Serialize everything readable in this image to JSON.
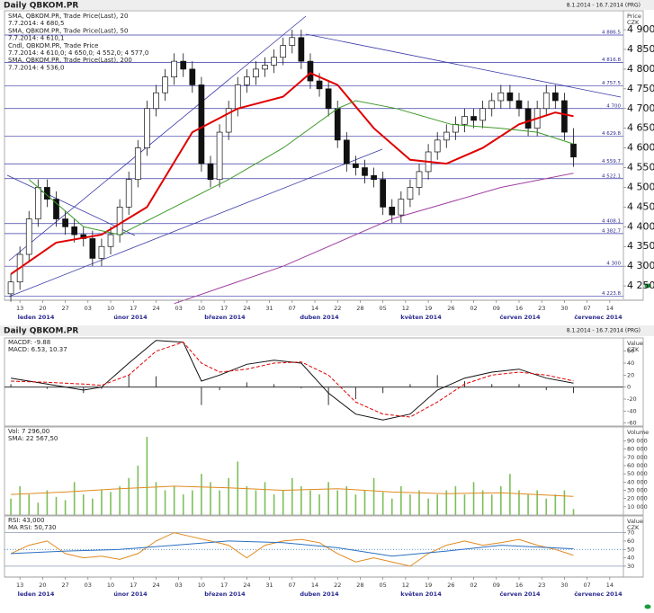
{
  "header": {
    "title": "Daily QBKOM.PR",
    "range": "8.1.2014 - 16.7.2014 (PRG)"
  },
  "chart_data": [
    {
      "type": "candlestick",
      "ylabel": "Price",
      "yunit": "CZK",
      "xlim": [
        -1.4,
        135
      ],
      "xticks": [
        {
          "value": 2,
          "label": "13"
        },
        {
          "value": 7,
          "label": "20"
        },
        {
          "value": 12,
          "label": "27"
        },
        {
          "value": 17,
          "label": "03"
        },
        {
          "value": 22,
          "label": "10"
        },
        {
          "value": 27,
          "label": "17"
        },
        {
          "value": 32,
          "label": "24"
        },
        {
          "value": 37,
          "label": "03"
        },
        {
          "value": 42,
          "label": "10"
        },
        {
          "value": 47,
          "label": "17"
        },
        {
          "value": 52,
          "label": "24"
        },
        {
          "value": 57,
          "label": "31"
        },
        {
          "value": 62,
          "label": "07"
        },
        {
          "value": 67,
          "label": "14"
        },
        {
          "value": 72,
          "label": "22"
        },
        {
          "value": 77,
          "label": "28"
        },
        {
          "value": 82,
          "label": "05"
        },
        {
          "value": 87,
          "label": "12"
        },
        {
          "value": 92,
          "label": "19"
        },
        {
          "value": 97,
          "label": "26"
        },
        {
          "value": 102,
          "label": "02"
        },
        {
          "value": 107,
          "label": "09"
        },
        {
          "value": 112,
          "label": "16"
        },
        {
          "value": 117,
          "label": "23"
        },
        {
          "value": 122,
          "label": "30"
        },
        {
          "value": 127,
          "label": "07"
        },
        {
          "value": 132,
          "label": "14"
        }
      ],
      "months": [
        "leden 2014",
        "únor 2014",
        "březen 2014",
        "duben 2014",
        "květen 2014",
        "červen 2014",
        "červenec 2014"
      ],
      "ylim": [
        4216,
        4948
      ],
      "yticks": [
        {
          "value": 4250,
          "label": "4 250"
        },
        {
          "value": 4300,
          "label": "4 300"
        },
        {
          "value": 4350,
          "label": "4 350"
        },
        {
          "value": 4400,
          "label": "4 400"
        },
        {
          "value": 4450,
          "label": "4 450"
        },
        {
          "value": 4500,
          "label": "4 500"
        },
        {
          "value": 4550,
          "label": "4 550"
        },
        {
          "value": 4600,
          "label": "4 600"
        },
        {
          "value": 4650,
          "label": "4 650"
        },
        {
          "value": 4700,
          "label": "4 700"
        },
        {
          "value": 4750,
          "label": "4 750"
        },
        {
          "value": 4800,
          "label": "4 800"
        },
        {
          "value": 4850,
          "label": "4 850"
        },
        {
          "value": 4900,
          "label": "4 900"
        }
      ],
      "levels": [
        {
          "value": 4886.5,
          "label": "4 886.5"
        },
        {
          "value": 4816.8,
          "label": "4 816.8"
        },
        {
          "value": 4757.5,
          "label": "4 757.5"
        },
        {
          "value": 4700,
          "label": "4 700"
        },
        {
          "value": 4629.8,
          "label": "4 629.8"
        },
        {
          "value": 4559.7,
          "label": "4 559.7"
        },
        {
          "value": 4522.1,
          "label": "4 522.1"
        },
        {
          "value": 4408.1,
          "label": "4 408.1"
        },
        {
          "value": 4382.7,
          "label": "4 382.7"
        },
        {
          "value": 4300,
          "label": "4 300"
        },
        {
          "value": 4223.8,
          "label": "4 223.8"
        }
      ],
      "level_color": "#3a3aa8",
      "legend": [
        {
          "text": "SMA, QBKOM.PR, Trade Price(Last), 20",
          "color": "#e00000"
        },
        {
          "text": "7.7.2014: 4 680,5",
          "color": "#e00000"
        },
        {
          "text": "SMA, QBKOM.PR, Trade Price(Last), 50",
          "color": "#3f9a2a"
        },
        {
          "text": "7.7.2014: 4 610,1",
          "color": "#3f9a2a"
        },
        {
          "text": "Cndl, QBKOM.PR, Trade Price",
          "color": "#111111"
        },
        {
          "text": "7.7.2014: 4 610,0; 4 650,0; 4 552,0; 4 577,0",
          "color": "#111111"
        },
        {
          "text": "SMA, QBKOM.PR, Trade Price(Last), 200",
          "color": "#a040a0"
        },
        {
          "text": "7.7.2014: 4 536,0",
          "color": "#a040a0"
        }
      ],
      "candles": {
        "x": [
          0,
          2,
          4,
          6,
          8,
          10,
          12,
          14,
          16,
          18,
          20,
          22,
          24,
          26,
          28,
          30,
          32,
          34,
          36,
          38,
          40,
          42,
          44,
          46,
          48,
          50,
          52,
          54,
          56,
          58,
          60,
          62,
          64,
          66,
          68,
          70,
          72,
          74,
          76,
          78,
          80,
          82,
          84,
          86,
          88,
          90,
          92,
          94,
          96,
          98,
          100,
          102,
          104,
          106,
          108,
          110,
          112,
          114,
          116,
          118,
          120,
          122,
          124
        ],
        "open": [
          4230,
          4260,
          4330,
          4420,
          4500,
          4470,
          4420,
          4400,
          4380,
          4370,
          4320,
          4350,
          4380,
          4450,
          4520,
          4600,
          4700,
          4740,
          4780,
          4820,
          4800,
          4760,
          4560,
          4520,
          4640,
          4700,
          4760,
          4780,
          4800,
          4810,
          4830,
          4860,
          4880,
          4820,
          4770,
          4750,
          4700,
          4620,
          4560,
          4550,
          4530,
          4520,
          4450,
          4430,
          4470,
          4500,
          4540,
          4590,
          4620,
          4640,
          4660,
          4680,
          4670,
          4700,
          4720,
          4740,
          4720,
          4700,
          4650,
          4700,
          4740,
          4720,
          4610
        ],
        "high": [
          4280,
          4350,
          4440,
          4520,
          4520,
          4490,
          4440,
          4420,
          4400,
          4390,
          4370,
          4400,
          4470,
          4540,
          4620,
          4720,
          4760,
          4800,
          4840,
          4840,
          4820,
          4780,
          4580,
          4660,
          4720,
          4780,
          4800,
          4820,
          4830,
          4850,
          4880,
          4900,
          4900,
          4840,
          4790,
          4770,
          4720,
          4640,
          4580,
          4570,
          4550,
          4540,
          4470,
          4490,
          4520,
          4560,
          4610,
          4640,
          4660,
          4680,
          4700,
          4700,
          4720,
          4740,
          4760,
          4760,
          4740,
          4720,
          4720,
          4760,
          4760,
          4740,
          4650
        ],
        "low": [
          4210,
          4240,
          4310,
          4400,
          4450,
          4400,
          4380,
          4360,
          4350,
          4300,
          4300,
          4330,
          4360,
          4430,
          4500,
          4580,
          4680,
          4720,
          4760,
          4780,
          4740,
          4540,
          4500,
          4500,
          4620,
          4680,
          4740,
          4760,
          4780,
          4790,
          4810,
          4840,
          4800,
          4750,
          4730,
          4680,
          4600,
          4540,
          4530,
          4510,
          4500,
          4430,
          4410,
          4410,
          4450,
          4480,
          4520,
          4570,
          4600,
          4620,
          4640,
          4650,
          4650,
          4680,
          4700,
          4700,
          4680,
          4630,
          4630,
          4680,
          4700,
          4620,
          4552
        ],
        "close": [
          4260,
          4330,
          4420,
          4500,
          4470,
          4420,
          4400,
          4380,
          4370,
          4320,
          4350,
          4380,
          4450,
          4520,
          4600,
          4700,
          4740,
          4780,
          4820,
          4800,
          4760,
          4560,
          4520,
          4640,
          4700,
          4760,
          4780,
          4800,
          4810,
          4830,
          4860,
          4880,
          4820,
          4770,
          4750,
          4700,
          4620,
          4560,
          4550,
          4530,
          4520,
          4450,
          4430,
          4470,
          4500,
          4540,
          4590,
          4620,
          4640,
          4660,
          4680,
          4670,
          4700,
          4720,
          4740,
          4720,
          4700,
          4650,
          4700,
          4740,
          4720,
          4640,
          4577
        ]
      },
      "series": [
        {
          "color": "#e00000",
          "width": 2,
          "x": [
            0,
            10,
            20,
            30,
            40,
            50,
            60,
            66,
            72,
            80,
            88,
            96,
            104,
            112,
            120,
            124
          ],
          "values": [
            4280,
            4360,
            4380,
            4450,
            4640,
            4700,
            4730,
            4790,
            4760,
            4650,
            4570,
            4560,
            4600,
            4660,
            4690,
            4680.5
          ]
        },
        {
          "color": "#3f9a2a",
          "width": 1,
          "x": [
            4,
            16,
            24,
            48,
            60,
            72,
            76,
            85,
            97,
            108,
            116,
            124
          ],
          "values": [
            4520,
            4400,
            4380,
            4520,
            4600,
            4700,
            4720,
            4700,
            4660,
            4650,
            4640,
            4610.1
          ]
        },
        {
          "color": "#a040a0",
          "width": 1,
          "x": [
            36,
            60,
            84,
            108,
            124
          ],
          "values": [
            4205,
            4300,
            4420,
            4500,
            4536
          ]
        }
      ]
    },
    {
      "type": "macd",
      "ylabel": "Value",
      "yunit": "CZK",
      "ylim": [
        -65,
        82
      ],
      "yticks": [
        60,
        40,
        20,
        0,
        -20,
        -40,
        -60
      ],
      "legend": [
        {
          "text": "MACDF: -9.88",
          "color": "#111111"
        },
        {
          "text": "MACD: 6.53, 10.37",
          "color": "#111111"
        }
      ],
      "x": [
        0,
        8,
        16,
        20,
        26,
        32,
        38,
        42,
        46,
        52,
        58,
        64,
        70,
        76,
        82,
        88,
        94,
        100,
        106,
        112,
        118,
        124
      ],
      "histogram": [
        5,
        -3,
        -10,
        -3,
        20,
        18,
        0,
        -30,
        -5,
        8,
        5,
        -2,
        -30,
        -20,
        -10,
        5,
        20,
        10,
        5,
        5,
        -5,
        -9.88
      ],
      "series": [
        {
          "color": "#111111",
          "dash": false,
          "values": [
            15,
            5,
            -5,
            0,
            40,
            78,
            75,
            10,
            20,
            38,
            45,
            40,
            -10,
            -45,
            -55,
            -45,
            -5,
            15,
            25,
            30,
            15,
            6.53
          ]
        },
        {
          "color": "#e00000",
          "dash": true,
          "values": [
            10,
            8,
            5,
            3,
            20,
            60,
            75,
            40,
            25,
            30,
            40,
            42,
            20,
            -25,
            -45,
            -50,
            -25,
            5,
            20,
            25,
            20,
            10.37
          ]
        }
      ]
    },
    {
      "type": "bar",
      "ylabel": "Volume",
      "ylim": [
        0,
        107000
      ],
      "yticks": [
        {
          "value": 90000,
          "label": "90 000"
        },
        {
          "value": 80000,
          "label": "80 000"
        },
        {
          "value": 70000,
          "label": "70 000"
        },
        {
          "value": 60000,
          "label": "60 000"
        },
        {
          "value": 50000,
          "label": "50 000"
        },
        {
          "value": 40000,
          "label": "40 000"
        },
        {
          "value": 30000,
          "label": "30 000"
        },
        {
          "value": 20000,
          "label": "20 000"
        },
        {
          "value": 10000,
          "label": "10 000"
        }
      ],
      "legend": [
        {
          "text": "Vol: 7 296,00",
          "color": "#3f9a2a"
        },
        {
          "text": "SMA: 22 567,50",
          "color": "#e08a20"
        }
      ],
      "color": "#7cbf5a",
      "x": [
        0,
        2,
        4,
        6,
        8,
        10,
        12,
        14,
        16,
        18,
        20,
        22,
        24,
        26,
        28,
        30,
        32,
        34,
        36,
        38,
        40,
        42,
        44,
        46,
        48,
        50,
        52,
        54,
        56,
        58,
        60,
        62,
        64,
        66,
        68,
        70,
        72,
        74,
        76,
        78,
        80,
        82,
        84,
        86,
        88,
        90,
        92,
        94,
        96,
        98,
        100,
        102,
        104,
        106,
        108,
        110,
        112,
        114,
        116,
        118,
        120,
        122,
        124
      ],
      "values": [
        20000,
        35000,
        25000,
        15000,
        30000,
        22000,
        18000,
        40000,
        25000,
        20000,
        30000,
        28000,
        35000,
        45000,
        60000,
        95000,
        40000,
        30000,
        35000,
        25000,
        30000,
        50000,
        40000,
        30000,
        45000,
        65000,
        35000,
        30000,
        40000,
        25000,
        30000,
        45000,
        35000,
        30000,
        25000,
        40000,
        30000,
        35000,
        25000,
        30000,
        45000,
        28000,
        20000,
        35000,
        25000,
        30000,
        20000,
        25000,
        30000,
        35000,
        25000,
        40000,
        30000,
        25000,
        35000,
        50000,
        30000,
        25000,
        30000,
        20000,
        25000,
        30000,
        7296
      ],
      "series": [
        {
          "color": "#e08a20",
          "x": [
            0,
            12,
            24,
            36,
            48,
            60,
            72,
            84,
            96,
            108,
            124
          ],
          "values": [
            25000,
            28000,
            32000,
            35000,
            33000,
            30000,
            32000,
            28000,
            26000,
            27000,
            22567.5
          ]
        }
      ]
    },
    {
      "type": "line",
      "ylabel": "Value",
      "yunit": "CZK",
      "ylim": [
        17,
        90
      ],
      "yticks": [
        70,
        60,
        50,
        40,
        30
      ],
      "guides": [
        70,
        50,
        30
      ],
      "legend": [
        {
          "text": "RSI: 43,000",
          "color": "#e08a20"
        },
        {
          "text": "MA RSI: 50,730",
          "color": "#2a70c0"
        }
      ],
      "series": [
        {
          "color": "#e08a20",
          "x": [
            0,
            4,
            8,
            12,
            16,
            20,
            24,
            28,
            32,
            36,
            40,
            44,
            48,
            52,
            56,
            60,
            64,
            68,
            72,
            76,
            80,
            84,
            88,
            92,
            96,
            100,
            104,
            108,
            112,
            116,
            120,
            124
          ],
          "values": [
            45,
            55,
            60,
            45,
            40,
            42,
            38,
            45,
            60,
            70,
            65,
            60,
            55,
            40,
            55,
            60,
            62,
            58,
            45,
            35,
            40,
            35,
            30,
            45,
            55,
            60,
            55,
            58,
            62,
            55,
            50,
            43
          ]
        },
        {
          "color": "#2a70c0",
          "x": [
            0,
            12,
            24,
            36,
            48,
            60,
            72,
            84,
            96,
            108,
            124
          ],
          "values": [
            45,
            48,
            50,
            55,
            60,
            58,
            52,
            42,
            48,
            55,
            50.73
          ]
        }
      ]
    }
  ]
}
